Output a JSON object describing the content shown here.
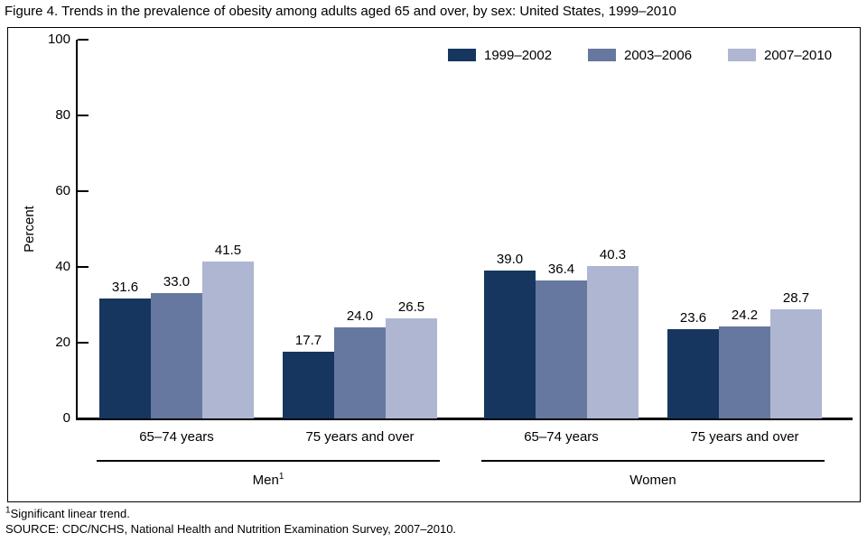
{
  "title": "Figure 4. Trends in the prevalence of obesity among adults aged 65 and over, by sex: United States, 1999–2010",
  "ylabel": "Percent",
  "footnotes": {
    "trend_sup": "1",
    "trend_text": "Significant linear trend.",
    "source_text": "SOURCE: CDC/NCHS, National Health and Nutrition Examination Survey, 2007–2010."
  },
  "colors": {
    "series1": "#16365f",
    "series2": "#66789f",
    "series3": "#aeb6d1",
    "axis": "#000000"
  },
  "chart_data": {
    "type": "bar",
    "title": "Trends in the prevalence of obesity among adults aged 65 and over, by sex: United States, 1999–2010",
    "xlabel": "",
    "ylabel": "Percent",
    "ylim": [
      0,
      100
    ],
    "yticks": [
      0,
      20,
      40,
      60,
      80,
      100
    ],
    "grid": false,
    "legend_position": "top-right",
    "categories": [
      "65–74 years",
      "75 years and over",
      "65–74 years",
      "75 years and over"
    ],
    "group_sections": [
      {
        "name": "Men",
        "sup": "1",
        "group_indexes": [
          0,
          1
        ]
      },
      {
        "name": "Women",
        "sup": "",
        "group_indexes": [
          2,
          3
        ]
      }
    ],
    "series": [
      {
        "name": "1999–2002",
        "color": "#16365f",
        "values": [
          31.6,
          17.7,
          39.0,
          23.6
        ]
      },
      {
        "name": "2003–2006",
        "color": "#66789f",
        "values": [
          33.0,
          24.0,
          36.4,
          24.2
        ]
      },
      {
        "name": "2007–2010",
        "color": "#aeb6d1",
        "values": [
          41.5,
          26.5,
          40.3,
          28.7
        ]
      }
    ]
  }
}
